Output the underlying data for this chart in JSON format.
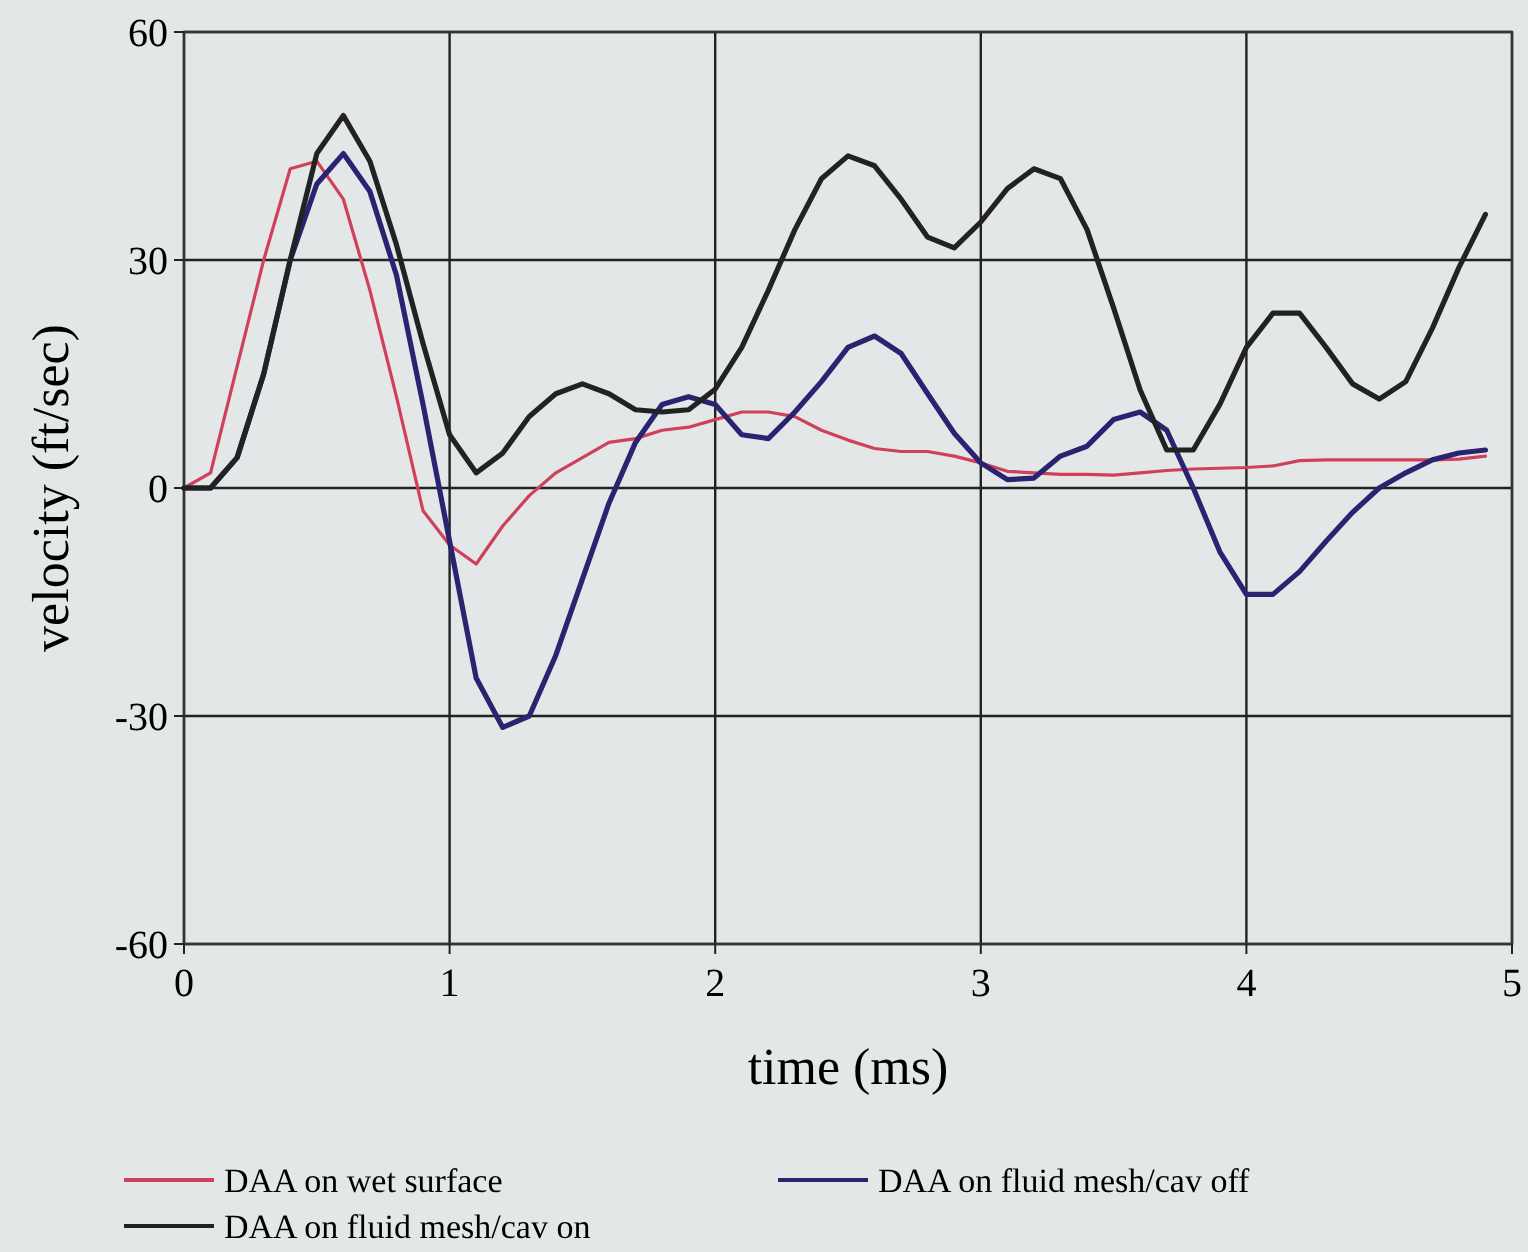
{
  "chart_data": {
    "type": "line",
    "xlabel": "time (ms)",
    "ylabel": "velocity (ft/sec)",
    "x": [
      0,
      0.1,
      0.2,
      0.3,
      0.4,
      0.5,
      0.6,
      0.7,
      0.8,
      0.9,
      1.0,
      1.1,
      1.2,
      1.3,
      1.4,
      1.5,
      1.6,
      1.7,
      1.8,
      1.9,
      2.0,
      2.1,
      2.2,
      2.3,
      2.4,
      2.5,
      2.6,
      2.7,
      2.8,
      2.9,
      3.0,
      3.1,
      3.2,
      3.3,
      3.4,
      3.5,
      3.6,
      3.7,
      3.8,
      3.9,
      4.0,
      4.1,
      4.2,
      4.3,
      4.4,
      4.5,
      4.6,
      4.7,
      4.8,
      4.9
    ],
    "series": [
      {
        "name": "DAA on wet surface",
        "color": "#d0405a",
        "values": [
          0,
          2,
          16,
          30,
          42,
          43,
          38,
          26,
          12,
          -3,
          -7.5,
          -10,
          -5,
          -1,
          2,
          4,
          6,
          6.5,
          7.6,
          8,
          9,
          10,
          10,
          9.4,
          7.6,
          6.3,
          5.2,
          4.8,
          4.8,
          4.2,
          3.3,
          2.2,
          2,
          1.8,
          1.8,
          1.7,
          2,
          2.3,
          2.5,
          2.6,
          2.7,
          2.9,
          3.6,
          3.7,
          3.7,
          3.7,
          3.7,
          3.7,
          3.8,
          4.2
        ]
      },
      {
        "name": "DAA on fluid mesh/cav off",
        "color": "#2a2370",
        "values": [
          0,
          0,
          4,
          15,
          30,
          40,
          44,
          39,
          28,
          11,
          -7,
          -25,
          -31.5,
          -30,
          -22,
          -12,
          -2,
          6,
          11,
          12,
          11,
          7,
          6.5,
          10,
          14,
          18.5,
          20,
          17.7,
          12.4,
          7.2,
          3.3,
          1.1,
          1.3,
          4.2,
          5.5,
          9,
          10,
          7.6,
          0,
          -8.4,
          -14,
          -14,
          -11,
          -7,
          -3.2,
          0,
          2,
          3.7,
          4.6,
          5
        ]
      },
      {
        "name": "DAA on fluid mesh/cav on",
        "color": "#222222",
        "values": [
          0,
          0,
          4,
          15,
          30,
          44,
          49,
          43,
          32,
          19,
          7,
          2,
          4.6,
          9.4,
          12.4,
          13.7,
          12.4,
          10.3,
          10,
          10.3,
          13,
          18.5,
          26,
          34,
          40.7,
          43.7,
          42.4,
          38,
          33,
          31.6,
          35,
          39.4,
          42,
          40.7,
          34,
          23.7,
          12.9,
          5,
          5,
          11,
          18.5,
          23,
          23,
          18.5,
          13.7,
          11.7,
          14,
          21,
          29,
          36
        ]
      }
    ],
    "xlim": [
      0,
      5
    ],
    "xticks": [
      0,
      1,
      2,
      3,
      4,
      5
    ],
    "ylim": [
      -60,
      60
    ],
    "yticks": [
      -60,
      -30,
      0,
      30,
      60
    ],
    "grid": true,
    "legend": "bottom",
    "line_style": "solid",
    "marker": "none"
  }
}
